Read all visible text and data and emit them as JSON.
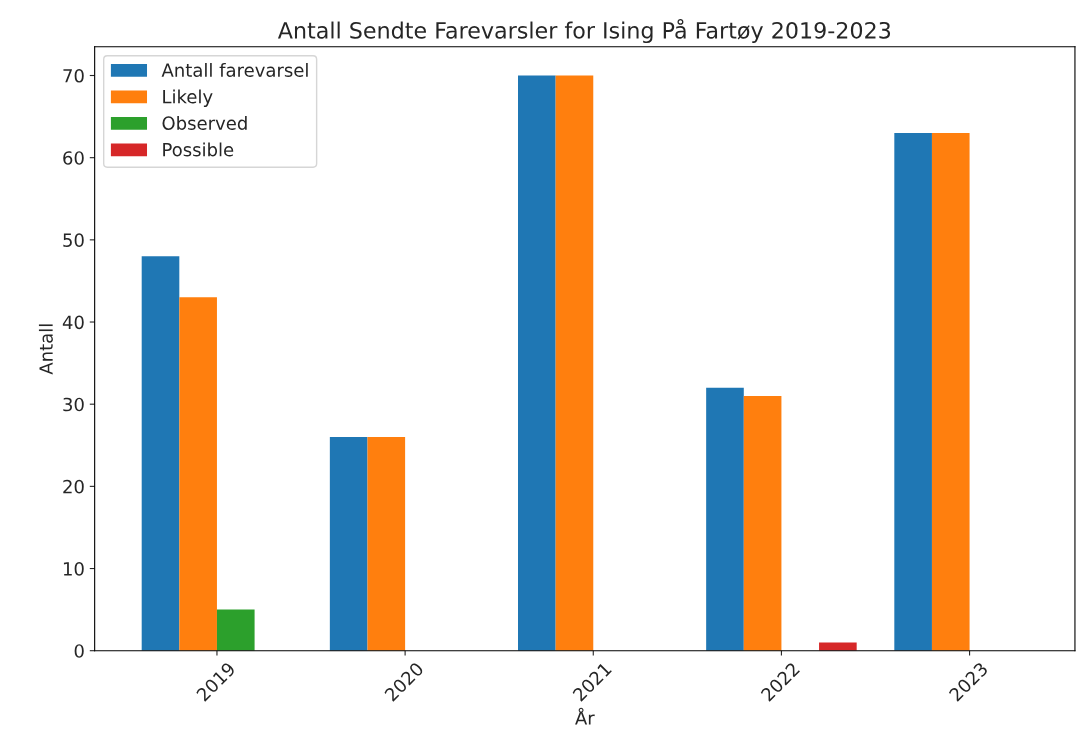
{
  "chart_data": {
    "type": "bar",
    "title": "Antall Sendte Farevarsler for Ising På Fartøy 2019-2023",
    "xlabel": "År",
    "ylabel": "Antall",
    "categories": [
      "2019",
      "2020",
      "2021",
      "2022",
      "2023"
    ],
    "series": [
      {
        "name": "Antall farevarsel",
        "color": "#1f77b4",
        "values": [
          48,
          26,
          70,
          32,
          63
        ]
      },
      {
        "name": "Likely",
        "color": "#ff7f0e",
        "values": [
          43,
          26,
          70,
          31,
          63
        ]
      },
      {
        "name": "Observed",
        "color": "#2ca02c",
        "values": [
          5,
          null,
          null,
          null,
          null
        ]
      },
      {
        "name": "Possible",
        "color": "#d62728",
        "values": [
          null,
          null,
          null,
          1,
          null
        ]
      }
    ],
    "ylim": [
      0,
      73.5
    ],
    "yticks": [
      0,
      10,
      20,
      30,
      40,
      50,
      60,
      70
    ],
    "grid": false,
    "legend": "top left"
  }
}
